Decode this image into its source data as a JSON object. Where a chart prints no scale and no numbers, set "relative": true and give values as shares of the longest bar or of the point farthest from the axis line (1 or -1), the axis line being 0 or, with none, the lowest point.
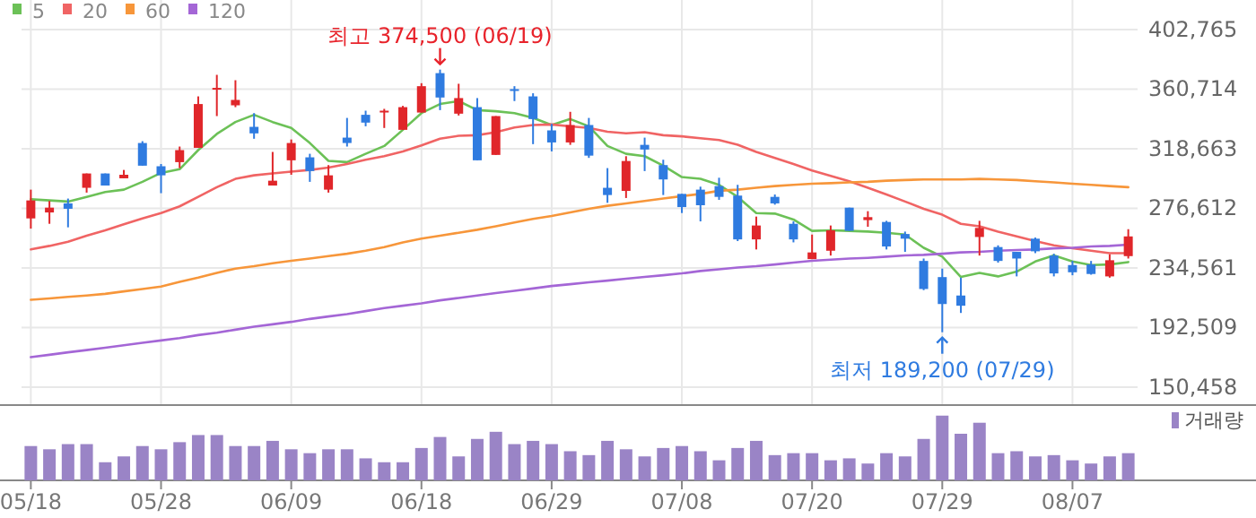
{
  "chart_data": [
    {
      "type": "candlestick",
      "categories": [
        null,
        null,
        null,
        null,
        null,
        null,
        null,
        null,
        null,
        null,
        null,
        null,
        null,
        null,
        null,
        null,
        null,
        null,
        null,
        null,
        null,
        null,
        null,
        null,
        null,
        null,
        null,
        null,
        null,
        null,
        null,
        null,
        null,
        null,
        null,
        null,
        null,
        null,
        null,
        null,
        null,
        null,
        null,
        null,
        null,
        null,
        null,
        null,
        null,
        null,
        null,
        null,
        null,
        null,
        null,
        null,
        null,
        null,
        null,
        null
      ],
      "ohlc": [
        [
          269500,
          289800,
          262300,
          282200
        ],
        [
          273700,
          281800,
          265700,
          277100
        ],
        [
          280100,
          283500,
          263200,
          276300
        ],
        [
          291100,
          301200,
          287700,
          301200
        ],
        [
          301200,
          301200,
          292700,
          292700
        ],
        [
          297800,
          303700,
          297800,
          300300
        ],
        [
          322700,
          324000,
          306700,
          306700
        ],
        [
          306300,
          307900,
          287300,
          299900
        ],
        [
          309200,
          320200,
          305000,
          317700
        ],
        [
          319300,
          355600,
          319300,
          350200
        ],
        [
          361100,
          370800,
          341700,
          361600
        ],
        [
          349300,
          367000,
          348000,
          353100
        ],
        [
          334100,
          343800,
          325700,
          329500
        ],
        [
          292700,
          316400,
          292700,
          296100
        ],
        [
          310500,
          325200,
          300300,
          322700
        ],
        [
          312600,
          315100,
          295300,
          302900
        ],
        [
          289800,
          307100,
          287700,
          299900
        ],
        [
          326500,
          340400,
          320200,
          322700
        ],
        [
          342600,
          345500,
          334500,
          337100
        ],
        [
          345100,
          346800,
          333300,
          345500
        ],
        [
          332000,
          348900,
          332000,
          348000
        ],
        [
          344200,
          364900,
          344200,
          362800
        ],
        [
          372000,
          374500,
          345900,
          354800
        ],
        [
          343400,
          364500,
          342100,
          354400
        ],
        [
          348000,
          354400,
          310500,
          310500
        ],
        [
          314300,
          341700,
          314300,
          341700
        ],
        [
          360700,
          362800,
          352300,
          359900
        ],
        [
          355600,
          357800,
          321900,
          339600
        ],
        [
          331600,
          336200,
          316800,
          323100
        ],
        [
          323100,
          344700,
          321400,
          335400
        ],
        [
          335400,
          340400,
          312200,
          313800
        ],
        [
          291100,
          305000,
          280500,
          286000
        ],
        [
          288900,
          313400,
          283900,
          310000
        ],
        [
          321400,
          326500,
          302900,
          318100
        ],
        [
          307100,
          310900,
          286000,
          297000
        ],
        [
          286800,
          286800,
          273300,
          277500
        ],
        [
          289800,
          291900,
          267400,
          278800
        ],
        [
          292300,
          298200,
          282600,
          284700
        ],
        [
          285600,
          293200,
          253500,
          254700
        ],
        [
          254700,
          270800,
          247600,
          264500
        ],
        [
          284700,
          286400,
          279200,
          280100
        ],
        [
          265700,
          267400,
          252600,
          254700
        ],
        [
          240800,
          258100,
          240800,
          245500
        ],
        [
          246700,
          264500,
          243300,
          261100
        ],
        [
          277100,
          277100,
          260700,
          260700
        ],
        [
          268300,
          274600,
          263600,
          270400
        ],
        [
          267000,
          267800,
          247600,
          249700
        ],
        [
          258500,
          260200,
          245900,
          255200
        ],
        [
          239500,
          241200,
          218900,
          219700
        ],
        [
          228100,
          234100,
          189200,
          209100
        ],
        [
          215100,
          227700,
          202800,
          207900
        ],
        [
          256400,
          267800,
          243300,
          262800
        ],
        [
          249300,
          250500,
          238300,
          239500
        ],
        [
          245900,
          245900,
          228600,
          241200
        ],
        [
          255200,
          256000,
          245000,
          246300
        ],
        [
          243300,
          244600,
          228600,
          230700
        ],
        [
          236600,
          239500,
          229400,
          231500
        ],
        [
          237000,
          239500,
          229800,
          230300
        ],
        [
          228600,
          244200,
          227700,
          240000
        ],
        [
          242900,
          261900,
          241200,
          256800
        ]
      ],
      "colors": [
        "#e0262a",
        "#e0262a",
        "#2f7be0",
        "#e0262a",
        "#2f7be0",
        "#e0262a",
        "#2f7be0",
        "#2f7be0",
        "#e0262a",
        "#e0262a",
        "#e0262a",
        "#e0262a",
        "#2f7be0",
        "#e0262a",
        "#e0262a",
        "#2f7be0",
        "#e0262a",
        "#2f7be0",
        "#2f7be0",
        "#e0262a",
        "#e0262a",
        "#e0262a",
        "#2f7be0",
        "#e0262a",
        "#2f7be0",
        "#e0262a",
        "#2f7be0",
        "#2f7be0",
        "#2f7be0",
        "#e0262a",
        "#2f7be0",
        "#2f7be0",
        "#e0262a",
        "#2f7be0",
        "#2f7be0",
        "#2f7be0",
        "#2f7be0",
        "#2f7be0",
        "#2f7be0",
        "#e0262a",
        "#2f7be0",
        "#2f7be0",
        "#e0262a",
        "#e0262a",
        "#2f7be0",
        "#e0262a",
        "#2f7be0",
        "#2f7be0",
        "#2f7be0",
        "#2f7be0",
        "#2f7be0",
        "#e0262a",
        "#2f7be0",
        "#2f7be0",
        "#2f7be0",
        "#2f7be0",
        "#2f7be0",
        "#2f7be0",
        "#e0262a",
        "#e0262a"
      ],
      "series": [
        {
          "name": "5",
          "type": "line",
          "color": "#6cc157",
          "values": [
            283000,
            282200,
            281400,
            284700,
            288100,
            289800,
            295300,
            301600,
            304200,
            317700,
            329100,
            337500,
            342600,
            337500,
            333300,
            322700,
            310100,
            309200,
            315100,
            320600,
            332000,
            343800,
            350200,
            352300,
            345900,
            345100,
            343800,
            340500,
            335400,
            339600,
            334500,
            320600,
            315100,
            313400,
            306700,
            298700,
            297400,
            293200,
            284700,
            273300,
            272900,
            268700,
            260700,
            261100,
            260700,
            260200,
            259400,
            258100,
            248800,
            242500,
            228200,
            231100,
            228600,
            232000,
            239100,
            243400,
            239100,
            236600,
            237000,
            238700
          ]
        },
        {
          "name": "20",
          "type": "line",
          "color": "#f06464",
          "values": [
            247600,
            250100,
            253100,
            257300,
            261100,
            265300,
            269500,
            273300,
            278000,
            284700,
            291500,
            297400,
            299900,
            301200,
            302500,
            303700,
            305400,
            307900,
            310900,
            313400,
            316800,
            321000,
            325700,
            327800,
            328200,
            330300,
            333700,
            335400,
            335800,
            334500,
            333300,
            330700,
            329500,
            330300,
            328200,
            327400,
            326100,
            324800,
            321500,
            316400,
            312200,
            307900,
            303300,
            299500,
            295700,
            291100,
            286400,
            281400,
            276300,
            272100,
            265700,
            264000,
            260200,
            256900,
            253500,
            250500,
            248400,
            246700,
            245000,
            245000
          ]
        },
        {
          "name": "60",
          "type": "line",
          "color": "#f7963a",
          "values": [
            212100,
            213000,
            214200,
            215100,
            216300,
            218000,
            219700,
            221400,
            224800,
            227700,
            231100,
            234100,
            235800,
            237900,
            239600,
            241200,
            242900,
            244600,
            246700,
            249300,
            252600,
            255200,
            257300,
            259400,
            261500,
            264000,
            266600,
            269100,
            271200,
            273800,
            276300,
            278400,
            280100,
            281800,
            283500,
            285200,
            286800,
            289000,
            289800,
            291100,
            292300,
            293200,
            294000,
            294400,
            294900,
            295300,
            296100,
            296600,
            297000,
            297000,
            297000,
            297400,
            297000,
            296600,
            295700,
            294900,
            294000,
            293200,
            292300,
            291500
          ]
        },
        {
          "name": "120",
          "type": "line",
          "color": "#a466d6",
          "values": [
            171600,
            173300,
            175000,
            176600,
            178300,
            180000,
            181700,
            183400,
            185100,
            187200,
            188900,
            191000,
            193100,
            194800,
            196500,
            198600,
            200300,
            202000,
            204100,
            206200,
            207900,
            209600,
            211700,
            213400,
            215100,
            216800,
            218400,
            220100,
            221800,
            223100,
            224400,
            225600,
            226900,
            228200,
            229400,
            230700,
            232400,
            233600,
            234900,
            235800,
            237000,
            238300,
            239600,
            240400,
            241200,
            241700,
            242500,
            243400,
            243800,
            244600,
            245500,
            245900,
            246700,
            247200,
            247600,
            248400,
            248800,
            249700,
            250100,
            251000
          ]
        }
      ],
      "ylim": [
        137800,
        423600
      ],
      "yticks": [
        {
          "value": 150458,
          "label": "150,458"
        },
        {
          "value": 192509,
          "label": "192,509"
        },
        {
          "value": 234561,
          "label": "234,561"
        },
        {
          "value": 276612,
          "label": "276,612"
        },
        {
          "value": 318663,
          "label": "318,663"
        },
        {
          "value": 360714,
          "label": "360,714"
        },
        {
          "value": 402765,
          "label": "402,765"
        }
      ],
      "grid": true,
      "legend": "top left",
      "tick_labels": "y",
      "annotations": [
        {
          "text": "최고 374,500 (06/19)",
          "y": 374500
        },
        {
          "text": "최저 189,200 (07/29)",
          "y": 189200
        }
      ]
    },
    {
      "type": "bar",
      "relative": true,
      "categories": [
        "05/18",
        null,
        null,
        null,
        null,
        null,
        null,
        "05/28",
        null,
        null,
        null,
        null,
        null,
        null,
        "06/09",
        null,
        null,
        null,
        null,
        null,
        null,
        "06/18",
        null,
        null,
        null,
        null,
        null,
        null,
        "06/29",
        null,
        null,
        null,
        null,
        null,
        null,
        "07/08",
        null,
        null,
        null,
        null,
        null,
        null,
        "07/20",
        null,
        null,
        null,
        null,
        null,
        null,
        "07/29",
        null,
        null,
        null,
        null,
        null,
        null,
        "08/07",
        null,
        null,
        null
      ],
      "series": [
        {
          "name": "거래량",
          "color": "#9a84c6",
          "values": [
            0.53,
            0.48,
            0.56,
            0.56,
            0.28,
            0.37,
            0.53,
            0.48,
            0.59,
            0.7,
            0.7,
            0.53,
            0.53,
            0.61,
            0.48,
            0.42,
            0.48,
            0.48,
            0.34,
            0.28,
            0.28,
            0.5,
            0.67,
            0.37,
            0.64,
            0.75,
            0.56,
            0.61,
            0.56,
            0.45,
            0.39,
            0.61,
            0.48,
            0.37,
            0.5,
            0.53,
            0.45,
            0.31,
            0.5,
            0.61,
            0.39,
            0.42,
            0.42,
            0.31,
            0.34,
            0.26,
            0.42,
            0.37,
            0.64,
            1,
            0.72,
            0.89,
            0.42,
            0.45,
            0.37,
            0.39,
            0.31,
            0.26,
            0.37,
            0.42
          ]
        }
      ],
      "legend": "top right",
      "tick_labels": "x"
    }
  ]
}
